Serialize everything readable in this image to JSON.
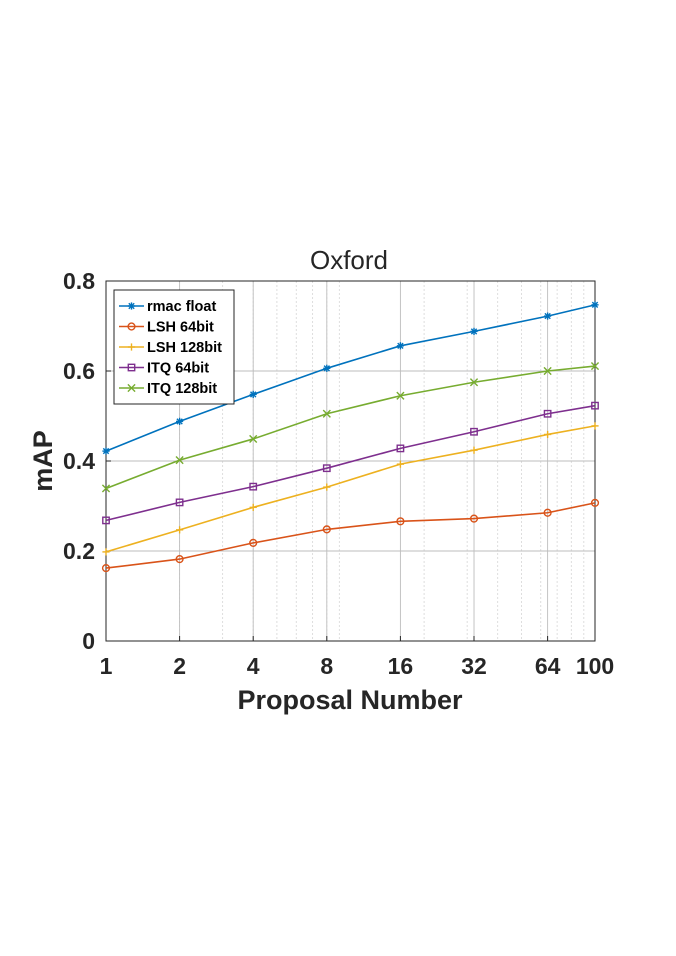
{
  "chart_data": {
    "type": "line",
    "title": "Oxford",
    "xlabel": "Proposal Number",
    "ylabel": "mAP",
    "x": [
      1,
      2,
      4,
      8,
      16,
      32,
      64,
      100
    ],
    "x_tick_labels": [
      "1",
      "2",
      "4",
      "8",
      "16",
      "32",
      "64",
      "100"
    ],
    "x_scale": "log",
    "xlim": [
      1,
      100
    ],
    "ylim": [
      0,
      0.8
    ],
    "y_ticks": [
      0,
      0.2,
      0.4,
      0.6,
      0.8
    ],
    "y_tick_labels": [
      "0",
      "0.2",
      "0.4",
      "0.6",
      "0.8"
    ],
    "grid": true,
    "legend_position": "top-left",
    "series": [
      {
        "name": "rmac float",
        "color": "#0072BD",
        "marker": "asterisk",
        "values": [
          0.422,
          0.488,
          0.548,
          0.606,
          0.656,
          0.688,
          0.722,
          0.747
        ]
      },
      {
        "name": "LSH 64bit",
        "color": "#D95319",
        "marker": "circle",
        "values": [
          0.162,
          0.182,
          0.218,
          0.248,
          0.266,
          0.272,
          0.285,
          0.307
        ]
      },
      {
        "name": "LSH 128bit",
        "color": "#EDB120",
        "marker": "plus",
        "values": [
          0.198,
          0.247,
          0.297,
          0.342,
          0.393,
          0.424,
          0.459,
          0.478
        ]
      },
      {
        "name": "ITQ 64bit",
        "color": "#7E2F8E",
        "marker": "square",
        "values": [
          0.268,
          0.308,
          0.343,
          0.384,
          0.428,
          0.465,
          0.505,
          0.523
        ]
      },
      {
        "name": "ITQ 128bit",
        "color": "#77AC30",
        "marker": "x",
        "values": [
          0.339,
          0.402,
          0.449,
          0.505,
          0.545,
          0.575,
          0.6,
          0.611
        ]
      }
    ]
  }
}
